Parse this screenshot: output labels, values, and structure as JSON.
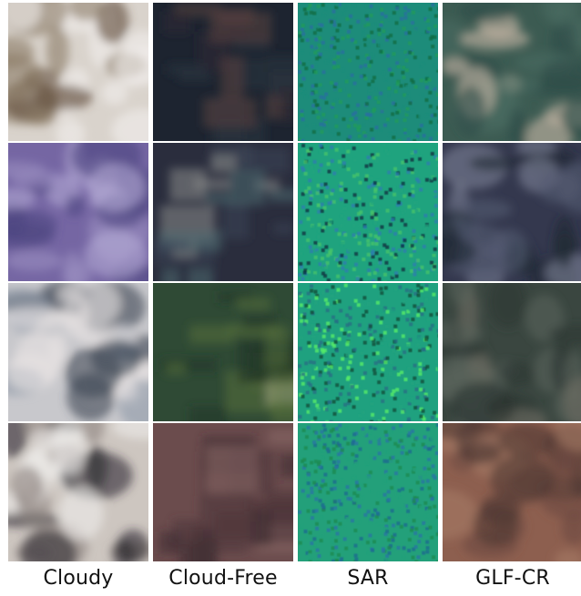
{
  "columns": [
    {
      "label": "Cloudy"
    },
    {
      "label": "Cloud-Free"
    },
    {
      "label": "SAR"
    },
    {
      "label": "GLF-CR"
    }
  ],
  "rows": [
    {
      "tiles": [
        {
          "kind": "cloudy",
          "palette": [
            "#d9d3cc",
            "#8a7b66",
            "#f1efec",
            "#5e4a35"
          ]
        },
        {
          "kind": "cloudfree",
          "palette": [
            "#1d2430",
            "#2f2833",
            "#5a4140",
            "#2a3340"
          ]
        },
        {
          "kind": "sar",
          "palette": [
            "#1d8c7a",
            "#2a6fa0",
            "#1f9b5a",
            "#0f6b42"
          ]
        },
        {
          "kind": "glfcr",
          "palette": [
            "#3c5b52",
            "#c9b7a6",
            "#2f4c47",
            "#4a6a60"
          ]
        }
      ]
    },
    {
      "tiles": [
        {
          "kind": "cloudy",
          "palette": [
            "#7566a3",
            "#9a8ec0",
            "#4d4680",
            "#b3a9d4"
          ]
        },
        {
          "kind": "cloudfree",
          "palette": [
            "#2a2d3d",
            "#3c4558",
            "#8a8c8a",
            "#4d6a70"
          ]
        },
        {
          "kind": "sar",
          "palette": [
            "#1fa37e",
            "#2b7cb0",
            "#48c46a",
            "#0b2f3f"
          ]
        },
        {
          "kind": "glfcr",
          "palette": [
            "#34384e",
            "#535a72",
            "#7d8296",
            "#1e2a33"
          ]
        }
      ]
    },
    {
      "tiles": [
        {
          "kind": "cloudy",
          "palette": [
            "#c8c8cc",
            "#3b4452",
            "#e7e3e2",
            "#8f9aa8"
          ]
        },
        {
          "kind": "cloudfree",
          "palette": [
            "#2f4a35",
            "#1f3324",
            "#d8cdb7",
            "#55703d"
          ]
        },
        {
          "kind": "sar",
          "palette": [
            "#1fa17f",
            "#256d84",
            "#58f067",
            "#0f4a37"
          ]
        },
        {
          "kind": "glfcr",
          "palette": [
            "#3a4640",
            "#59625a",
            "#2b3631",
            "#6e6c63"
          ]
        }
      ]
    },
    {
      "tiles": [
        {
          "kind": "cloudy",
          "palette": [
            "#cdc6c0",
            "#8d8480",
            "#efeceb",
            "#2d2a30"
          ]
        },
        {
          "kind": "cloudfree",
          "palette": [
            "#6b4c4d",
            "#4d3538",
            "#8a6a68",
            "#3a2a30"
          ]
        },
        {
          "kind": "sar",
          "palette": [
            "#23a07a",
            "#2a74a5",
            "#1c8a4f",
            "#1d6a90"
          ]
        },
        {
          "kind": "glfcr",
          "palette": [
            "#8d5f4f",
            "#6d4a40",
            "#a57a66",
            "#4e3834"
          ]
        }
      ]
    }
  ]
}
